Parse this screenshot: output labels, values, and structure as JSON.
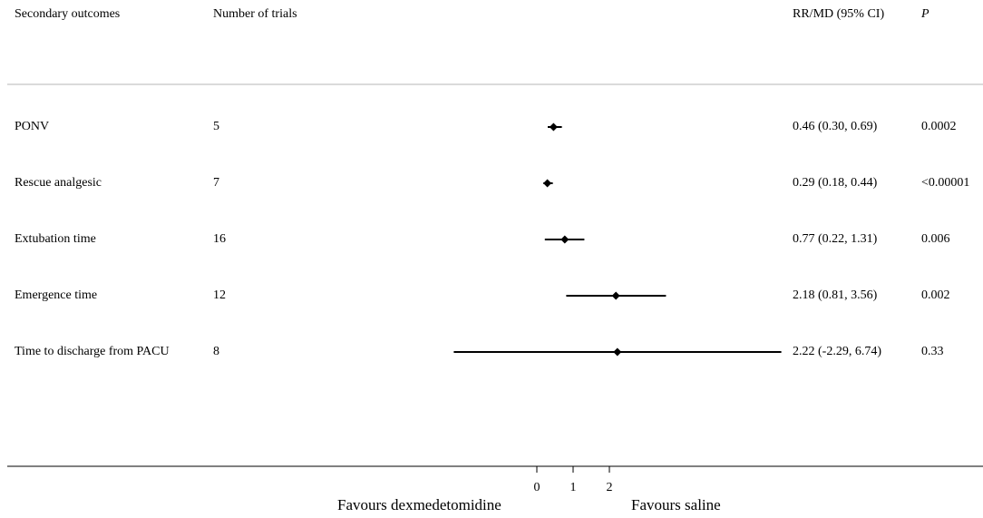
{
  "headers": {
    "outcome": "Secondary outcomes",
    "trials": "Number of trials",
    "estimate": "RR/MD (95% CI)",
    "p": "P"
  },
  "rows": [
    {
      "outcome": "PONV",
      "trials": "5",
      "estimate_text": "0.46 (0.30, 0.69)",
      "p": "0.0002"
    },
    {
      "outcome": "Rescue analgesic",
      "trials": "7",
      "estimate_text": "0.29 (0.18, 0.44)",
      "p": "<0.00001"
    },
    {
      "outcome": "Extubation time",
      "trials": "16",
      "estimate_text": "0.77 (0.22, 1.31)",
      "p": "0.006"
    },
    {
      "outcome": "Emergence time",
      "trials": "12",
      "estimate_text": "2.18 (0.81, 3.56)",
      "p": "0.002"
    },
    {
      "outcome": "Time to discharge from PACU",
      "trials": "8",
      "estimate_text": "2.22 (-2.29, 6.74)",
      "p": "0.33"
    }
  ],
  "axis": {
    "favours_left": "Favours dexmedetomidine",
    "favours_right": "Favours saline"
  },
  "chart_data": {
    "type": "forest",
    "categories": [
      "PONV",
      "Rescue analgesic",
      "Extubation time",
      "Emergence time",
      "Time to discharge from PACU"
    ],
    "estimates": [
      0.46,
      0.29,
      0.77,
      2.18,
      2.22
    ],
    "ci_lower": [
      0.3,
      0.18,
      0.22,
      0.81,
      -2.29
    ],
    "ci_upper": [
      0.69,
      0.44,
      1.31,
      3.56,
      6.74
    ],
    "xticks": [
      0,
      1,
      2
    ],
    "xlim": [
      -2.29,
      6.74
    ],
    "xlabel": "",
    "ylabel": ""
  }
}
